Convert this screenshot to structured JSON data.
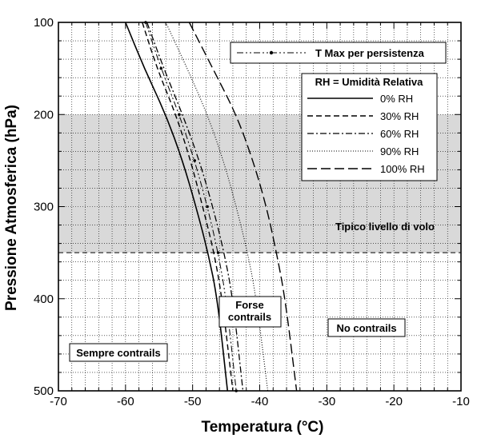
{
  "chart_data": {
    "type": "line",
    "xlabel": "Temperatura (°C)",
    "ylabel": "Pressione Atmosferica (hPa)",
    "xlim": [
      -70,
      -10
    ],
    "ylim": [
      100,
      500
    ],
    "y_inverted": true,
    "grid": true,
    "x_ticks": [
      -70,
      -60,
      -50,
      -40,
      -30,
      -20,
      -10
    ],
    "y_ticks": [
      100,
      200,
      300,
      400,
      500
    ],
    "x_tick_labels": [
      "-70",
      "-60",
      "-50",
      "-40",
      "-30",
      "-20",
      "-10"
    ],
    "y_tick_labels": [
      "100",
      "200",
      "300",
      "400",
      "500"
    ],
    "legend_title": "RH = Umidità Relativa",
    "series": [
      {
        "name": "0% RH",
        "style": "solid",
        "x": [
          -60.0,
          -57.2,
          -54.0,
          -51.5,
          -49.5,
          -47.7,
          -46.3,
          -44.8
        ],
        "y": [
          100,
          150,
          200,
          250,
          300,
          350,
          400,
          500
        ]
      },
      {
        "name": "30% RH",
        "style": "dashed",
        "x": [
          -57.5,
          -55.3,
          -52.5,
          -50.3,
          -48.5,
          -46.8,
          -45.6,
          -44.0
        ],
        "y": [
          100,
          150,
          200,
          250,
          300,
          350,
          400,
          500
        ]
      },
      {
        "name": "60% RH",
        "style": "dashdot",
        "x": [
          -56.8,
          -54.3,
          -51.5,
          -49.0,
          -47.0,
          -45.3,
          -44.0,
          -42.5
        ],
        "y": [
          100,
          150,
          200,
          250,
          300,
          350,
          400,
          500
        ]
      },
      {
        "name": "90% RH",
        "style": "dotted",
        "x": [
          -54.0,
          -50.8,
          -47.8,
          -45.4,
          -43.5,
          -41.8,
          -40.5,
          -38.8
        ],
        "y": [
          100,
          150,
          200,
          250,
          300,
          350,
          400,
          500
        ]
      },
      {
        "name": "100% RH",
        "style": "longdash",
        "x": [
          -50.5,
          -47.0,
          -43.5,
          -41.0,
          -39.0,
          -37.5,
          -36.2,
          -34.5
        ],
        "y": [
          100,
          150,
          200,
          250,
          300,
          350,
          400,
          500
        ]
      },
      {
        "name": "T Max per persistenza",
        "style": "dashdotdot-marker",
        "x": [
          -57.0,
          -54.7,
          -52.0,
          -49.7,
          -47.8,
          -46.2,
          -45.0,
          -43.5
        ],
        "y": [
          100,
          150,
          200,
          250,
          300,
          350,
          400,
          500
        ]
      }
    ],
    "flight_band": {
      "y_from": 200,
      "y_to": 350,
      "label": "Tipico livello di volo"
    },
    "annotations": [
      {
        "id": "forse",
        "lines": [
          "Forse",
          "contrails"
        ]
      },
      {
        "id": "no",
        "lines": [
          "No contrails"
        ]
      },
      {
        "id": "sempre",
        "lines": [
          "Sempre contrails"
        ]
      }
    ],
    "colors": {
      "band": "#d9d9d9",
      "line": "#000000",
      "grid": "#000000"
    }
  }
}
